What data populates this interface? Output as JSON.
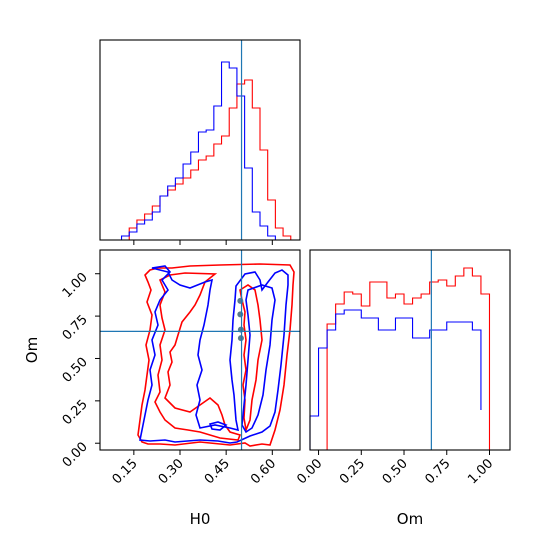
{
  "chart_data": {
    "type": "corner",
    "parameters": [
      "H0",
      "Om"
    ],
    "truth": {
      "H0": 0.5,
      "Om": 0.66
    },
    "colors": {
      "red": "#ff0000",
      "blue": "#0000ff",
      "truth": "#1f77b4",
      "marker": "#5a7a8a"
    },
    "panels": [
      {
        "id": "H0-hist",
        "type": "step-histogram",
        "xlim": [
          0.04,
          0.69
        ],
        "xticks": [
          0.15,
          0.3,
          0.45,
          0.6
        ],
        "series": [
          {
            "color": "red",
            "bin_edges": [
              0.06,
              0.085,
              0.11,
              0.135,
              0.16,
              0.185,
              0.21,
              0.235,
              0.26,
              0.285,
              0.31,
              0.335,
              0.36,
              0.385,
              0.41,
              0.435,
              0.46,
              0.485,
              0.51,
              0.535,
              0.56,
              0.585,
              0.61,
              0.635,
              0.66
            ],
            "values": [
              0,
              0,
              0,
              0.06,
              0.1,
              0.13,
              0.17,
              0.22,
              0.25,
              0.28,
              0.31,
              0.35,
              0.4,
              0.42,
              0.48,
              0.52,
              0.66,
              0.78,
              0.8,
              0.66,
              0.45,
              0.2,
              0.06,
              0.02
            ]
          },
          {
            "color": "blue",
            "bin_edges": [
              0.06,
              0.085,
              0.11,
              0.135,
              0.16,
              0.185,
              0.21,
              0.235,
              0.26,
              0.285,
              0.31,
              0.335,
              0.36,
              0.385,
              0.41,
              0.435,
              0.46,
              0.485,
              0.51,
              0.535,
              0.56,
              0.585,
              0.61,
              0.635,
              0.66
            ],
            "values": [
              0,
              0,
              0.02,
              0.04,
              0.08,
              0.1,
              0.14,
              0.22,
              0.27,
              0.31,
              0.38,
              0.44,
              0.54,
              0.55,
              0.67,
              0.89,
              0.86,
              0.72,
              0.36,
              0.14,
              0.07,
              0.02,
              0,
              0
            ]
          }
        ]
      },
      {
        "id": "H0-Om-contour",
        "type": "contour",
        "xlabel": "H0",
        "ylabel": "Om",
        "xlim": [
          0.04,
          0.69
        ],
        "ylim": [
          -0.04,
          1.14
        ],
        "xticks": [
          0.15,
          0.3,
          0.45,
          0.6
        ],
        "yticks": [
          0.0,
          0.25,
          0.5,
          0.75,
          1.0
        ],
        "marker_points": [
          [
            0.496,
            0.84
          ],
          [
            0.496,
            0.76
          ],
          [
            0.498,
            0.67
          ],
          [
            0.498,
            0.62
          ]
        ]
      },
      {
        "id": "Om-hist",
        "type": "step-histogram",
        "xlabel": "Om",
        "xlim": [
          -0.05,
          1.12
        ],
        "xticks": [
          0.0,
          0.25,
          0.5,
          0.75,
          1.0
        ],
        "series": [
          {
            "color": "red",
            "bin_edges": [
              0,
              0.05,
              0.1,
              0.15,
              0.2,
              0.25,
              0.3,
              0.35,
              0.4,
              0.45,
              0.5,
              0.55,
              0.6,
              0.65,
              0.7,
              0.75,
              0.8,
              0.85,
              0.9,
              0.95,
              1.0
            ],
            "values": [
              0,
              0.63,
              0.73,
              0.79,
              0.78,
              0.72,
              0.84,
              0.84,
              0.76,
              0.78,
              0.73,
              0.76,
              0.78,
              0.84,
              0.85,
              0.82,
              0.87,
              0.91,
              0.87,
              0.78
            ]
          },
          {
            "color": "blue",
            "bin_edges": [
              -0.05,
              0,
              0.05,
              0.1,
              0.15,
              0.2,
              0.25,
              0.3,
              0.35,
              0.4,
              0.45,
              0.5,
              0.55,
              0.6,
              0.65,
              0.7,
              0.75,
              0.8,
              0.85,
              0.9,
              0.95
            ],
            "values": [
              0.17,
              0.51,
              0.6,
              0.68,
              0.7,
              0.7,
              0.66,
              0.66,
              0.6,
              0.6,
              0.66,
              0.66,
              0.56,
              0.56,
              0.6,
              0.6,
              0.64,
              0.64,
              0.64,
              0.6,
              0.2
            ]
          }
        ]
      }
    ]
  }
}
